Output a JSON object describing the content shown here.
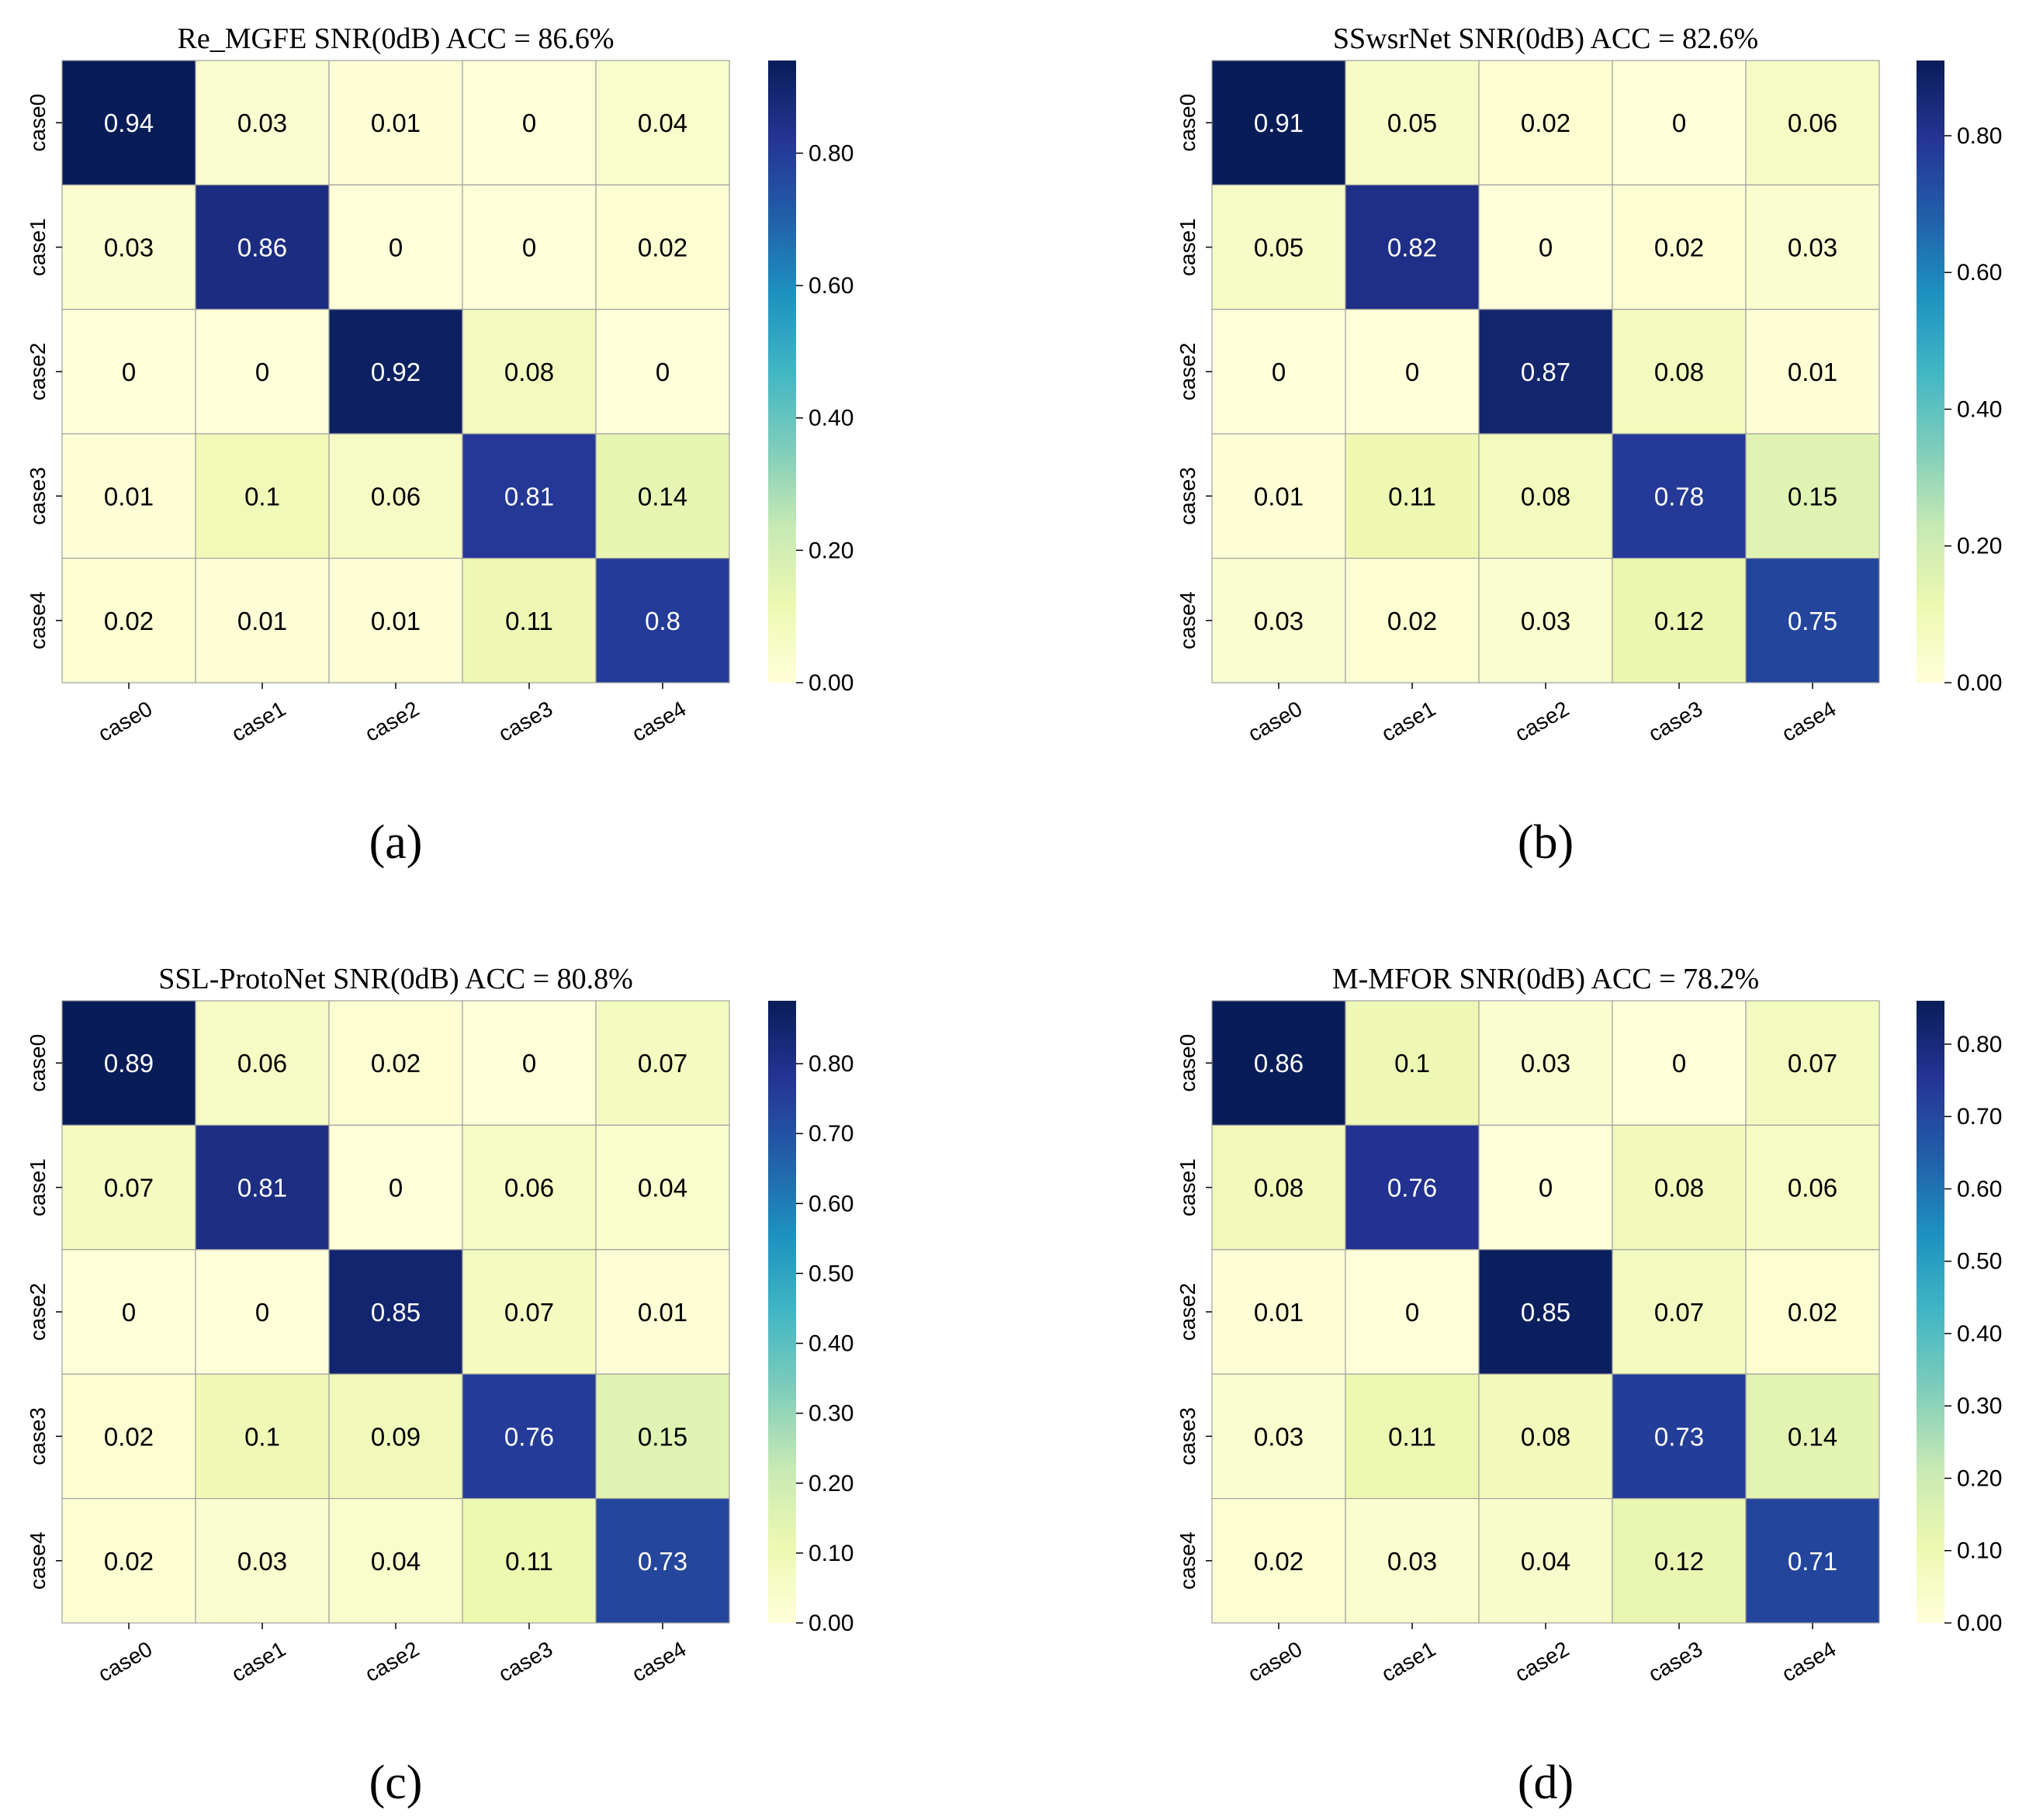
{
  "colormap": [
    "#ffffd9",
    "#edf8b1",
    "#c7e9b4",
    "#7fcdbb",
    "#41b6c4",
    "#1d91c0",
    "#225ea8",
    "#253494",
    "#081d58"
  ],
  "chart_data": [
    {
      "type": "heatmap",
      "title": "Re_MGFE SNR(0dB) ACC = 86.6%",
      "caption": "(a)",
      "x_categories": [
        "case0",
        "case1",
        "case2",
        "case3",
        "case4"
      ],
      "y_categories": [
        "case0",
        "case1",
        "case2",
        "case3",
        "case4"
      ],
      "values": [
        [
          0.94,
          0.03,
          0.01,
          0,
          0.04
        ],
        [
          0.03,
          0.86,
          0,
          0,
          0.02
        ],
        [
          0,
          0,
          0.92,
          0.08,
          0
        ],
        [
          0.01,
          0.1,
          0.06,
          0.81,
          0.14
        ],
        [
          0.02,
          0.01,
          0.01,
          0.11,
          0.8
        ]
      ],
      "colorbar": {
        "min": 0,
        "max": 0.94,
        "ticks": [
          0.0,
          0.2,
          0.4,
          0.6,
          0.8
        ],
        "tick_labels": [
          "0.00",
          "0.20",
          "0.40",
          "0.60",
          "0.80"
        ]
      }
    },
    {
      "type": "heatmap",
      "title": "SSwsrNet SNR(0dB) ACC = 82.6%",
      "caption": "(b)",
      "x_categories": [
        "case0",
        "case1",
        "case2",
        "case3",
        "case4"
      ],
      "y_categories": [
        "case0",
        "case1",
        "case2",
        "case3",
        "case4"
      ],
      "values": [
        [
          0.91,
          0.05,
          0.02,
          0,
          0.06
        ],
        [
          0.05,
          0.82,
          0,
          0.02,
          0.03
        ],
        [
          0,
          0,
          0.87,
          0.08,
          0.01
        ],
        [
          0.01,
          0.11,
          0.08,
          0.78,
          0.15
        ],
        [
          0.03,
          0.02,
          0.03,
          0.12,
          0.75
        ]
      ],
      "colorbar": {
        "min": 0,
        "max": 0.91,
        "ticks": [
          0.0,
          0.2,
          0.4,
          0.6,
          0.8
        ],
        "tick_labels": [
          "0.00",
          "0.20",
          "0.40",
          "0.60",
          "0.80"
        ]
      }
    },
    {
      "type": "heatmap",
      "title": "SSL-ProtoNet SNR(0dB) ACC = 80.8%",
      "caption": "(c)",
      "x_categories": [
        "case0",
        "case1",
        "case2",
        "case3",
        "case4"
      ],
      "y_categories": [
        "case0",
        "case1",
        "case2",
        "case3",
        "case4"
      ],
      "values": [
        [
          0.89,
          0.06,
          0.02,
          0,
          0.07
        ],
        [
          0.07,
          0.81,
          0,
          0.06,
          0.04
        ],
        [
          0,
          0,
          0.85,
          0.07,
          0.01
        ],
        [
          0.02,
          0.1,
          0.09,
          0.76,
          0.15
        ],
        [
          0.02,
          0.03,
          0.04,
          0.11,
          0.73
        ]
      ],
      "colorbar": {
        "min": 0,
        "max": 0.89,
        "ticks": [
          0.0,
          0.1,
          0.2,
          0.3,
          0.4,
          0.5,
          0.6,
          0.7,
          0.8
        ],
        "tick_labels": [
          "0.00",
          "0.10",
          "0.20",
          "0.30",
          "0.40",
          "0.50",
          "0.60",
          "0.70",
          "0.80"
        ]
      }
    },
    {
      "type": "heatmap",
      "title": "M-MFOR SNR(0dB) ACC = 78.2%",
      "caption": "(d)",
      "x_categories": [
        "case0",
        "case1",
        "case2",
        "case3",
        "case4"
      ],
      "y_categories": [
        "case0",
        "case1",
        "case2",
        "case3",
        "case4"
      ],
      "values": [
        [
          0.86,
          0.1,
          0.03,
          0,
          0.07
        ],
        [
          0.08,
          0.76,
          0,
          0.08,
          0.06
        ],
        [
          0.01,
          0,
          0.85,
          0.07,
          0.02
        ],
        [
          0.03,
          0.11,
          0.08,
          0.73,
          0.14
        ],
        [
          0.02,
          0.03,
          0.04,
          0.12,
          0.71
        ]
      ],
      "colorbar": {
        "min": 0,
        "max": 0.86,
        "ticks": [
          0.0,
          0.1,
          0.2,
          0.3,
          0.4,
          0.5,
          0.6,
          0.7,
          0.8
        ],
        "tick_labels": [
          "0.00",
          "0.10",
          "0.20",
          "0.30",
          "0.40",
          "0.50",
          "0.60",
          "0.70",
          "0.80"
        ]
      }
    }
  ]
}
